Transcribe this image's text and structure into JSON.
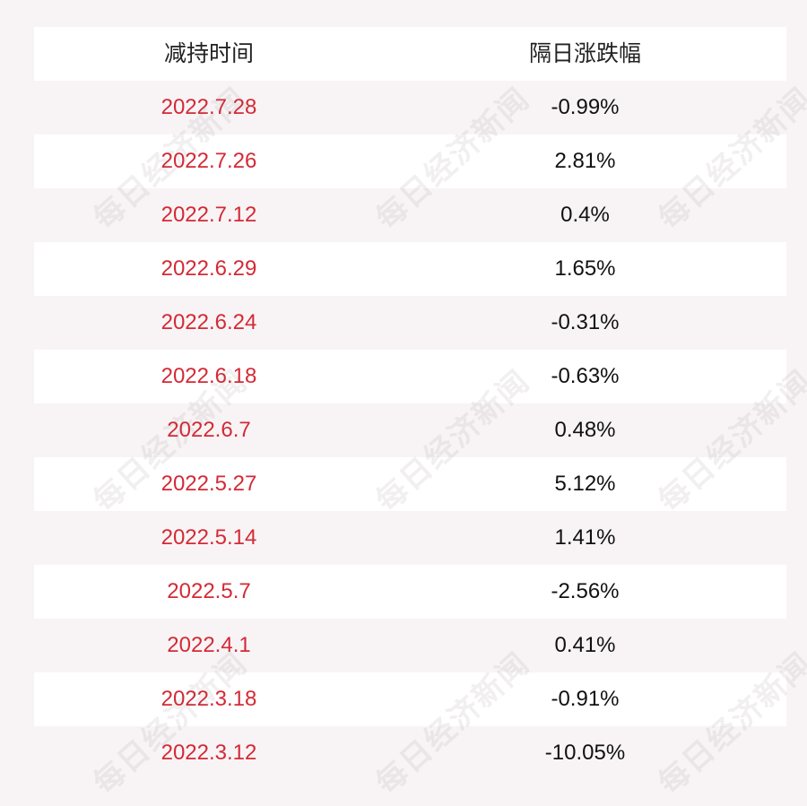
{
  "table": {
    "headers": [
      "减持时间",
      "隔日涨跌幅"
    ],
    "rows": [
      {
        "date": "2022.7.28",
        "change": "-0.99%"
      },
      {
        "date": "2022.7.26",
        "change": "2.81%"
      },
      {
        "date": "2022.7.12",
        "change": "0.4%"
      },
      {
        "date": "2022.6.29",
        "change": "1.65%"
      },
      {
        "date": "2022.6.24",
        "change": "-0.31%"
      },
      {
        "date": "2022.6.18",
        "change": "-0.63%"
      },
      {
        "date": "2022.6.7",
        "change": "0.48%"
      },
      {
        "date": "2022.5.27",
        "change": "5.12%"
      },
      {
        "date": "2022.5.14",
        "change": "1.41%"
      },
      {
        "date": "2022.5.7",
        "change": "-2.56%"
      },
      {
        "date": "2022.4.1",
        "change": "0.41%"
      },
      {
        "date": "2022.3.18",
        "change": "-0.91%"
      },
      {
        "date": "2022.3.12",
        "change": "-10.05%"
      }
    ]
  },
  "watermark": {
    "text": "每日经济新闻"
  },
  "colors": {
    "date_text": "#d42a36",
    "change_text": "#111111",
    "header_text": "#222222",
    "row_light": "#ffffff",
    "row_shade": "#f8f4f5"
  }
}
